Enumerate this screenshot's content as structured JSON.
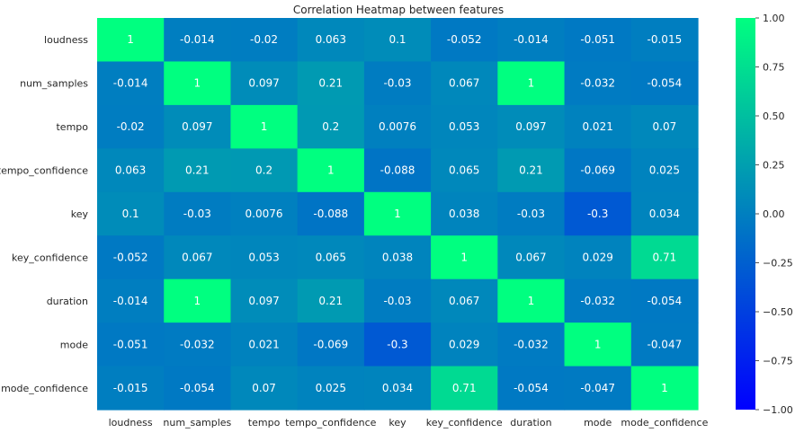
{
  "chart_data": {
    "type": "heatmap",
    "title": "Correlation Heatmap between features",
    "xlabel": "",
    "ylabel": "",
    "rows": [
      "loudness",
      "num_samples",
      "tempo",
      "tempo_confidence",
      "key",
      "key_confidence",
      "duration",
      "mode",
      "mode_confidence"
    ],
    "columns": [
      "loudness",
      "num_samples",
      "tempo",
      "tempo_confidence",
      "key",
      "key_confidence",
      "duration",
      "mode",
      "mode_confidence"
    ],
    "values": [
      [
        1,
        -0.014,
        -0.02,
        0.063,
        0.1,
        -0.052,
        -0.014,
        -0.051,
        -0.015
      ],
      [
        -0.014,
        1,
        0.097,
        0.21,
        -0.03,
        0.067,
        1,
        -0.032,
        -0.054
      ],
      [
        -0.02,
        0.097,
        1,
        0.2,
        0.0076,
        0.053,
        0.097,
        0.021,
        0.07
      ],
      [
        0.063,
        0.21,
        0.2,
        1,
        -0.088,
        0.065,
        0.21,
        -0.069,
        0.025
      ],
      [
        0.1,
        -0.03,
        0.0076,
        -0.088,
        1,
        0.038,
        -0.03,
        -0.3,
        0.034
      ],
      [
        -0.052,
        0.067,
        0.053,
        0.065,
        0.038,
        1,
        0.067,
        0.029,
        0.71
      ],
      [
        -0.014,
        1,
        0.097,
        0.21,
        -0.03,
        0.067,
        1,
        -0.032,
        -0.054
      ],
      [
        -0.051,
        -0.032,
        0.021,
        -0.069,
        -0.3,
        0.029,
        -0.032,
        1,
        -0.047
      ],
      [
        -0.015,
        -0.054,
        0.07,
        0.025,
        0.034,
        0.71,
        -0.054,
        -0.047,
        1
      ]
    ],
    "labels": [
      [
        "1",
        "-0.014",
        "-0.02",
        "0.063",
        "0.1",
        "-0.052",
        "-0.014",
        "-0.051",
        "-0.015"
      ],
      [
        "-0.014",
        "1",
        "0.097",
        "0.21",
        "-0.03",
        "0.067",
        "1",
        "-0.032",
        "-0.054"
      ],
      [
        "-0.02",
        "0.097",
        "1",
        "0.2",
        "0.0076",
        "0.053",
        "0.097",
        "0.021",
        "0.07"
      ],
      [
        "0.063",
        "0.21",
        "0.2",
        "1",
        "-0.088",
        "0.065",
        "0.21",
        "-0.069",
        "0.025"
      ],
      [
        "0.1",
        "-0.03",
        "0.0076",
        "-0.088",
        "1",
        "0.038",
        "-0.03",
        "-0.3",
        "0.034"
      ],
      [
        "-0.052",
        "0.067",
        "0.053",
        "0.065",
        "0.038",
        "1",
        "0.067",
        "0.029",
        "0.71"
      ],
      [
        "-0.014",
        "1",
        "0.097",
        "0.21",
        "-0.03",
        "0.067",
        "1",
        "-0.032",
        "-0.054"
      ],
      [
        "-0.051",
        "-0.032",
        "0.021",
        "-0.069",
        "-0.3",
        "0.029",
        "-0.032",
        "1",
        "-0.047"
      ],
      [
        "-0.015",
        "-0.054",
        "0.07",
        "0.025",
        "0.034",
        "0.71",
        "-0.054",
        "-0.047",
        "1"
      ]
    ],
    "colorbar": {
      "vmin": -1.0,
      "vmax": 1.0,
      "colormap": "winter",
      "color_low": "#0000ff",
      "color_high": "#00ff80",
      "ticks": [
        1.0,
        0.75,
        0.5,
        0.25,
        0.0,
        -0.25,
        -0.5,
        -0.75,
        -1.0
      ],
      "tick_labels": [
        "1.00",
        "0.75",
        "0.50",
        "0.25",
        "0.00",
        "−0.25",
        "−0.50",
        "−0.75",
        "−1.00"
      ]
    },
    "grid": false,
    "text_color": "#ffffff",
    "label_color": "#262626"
  }
}
